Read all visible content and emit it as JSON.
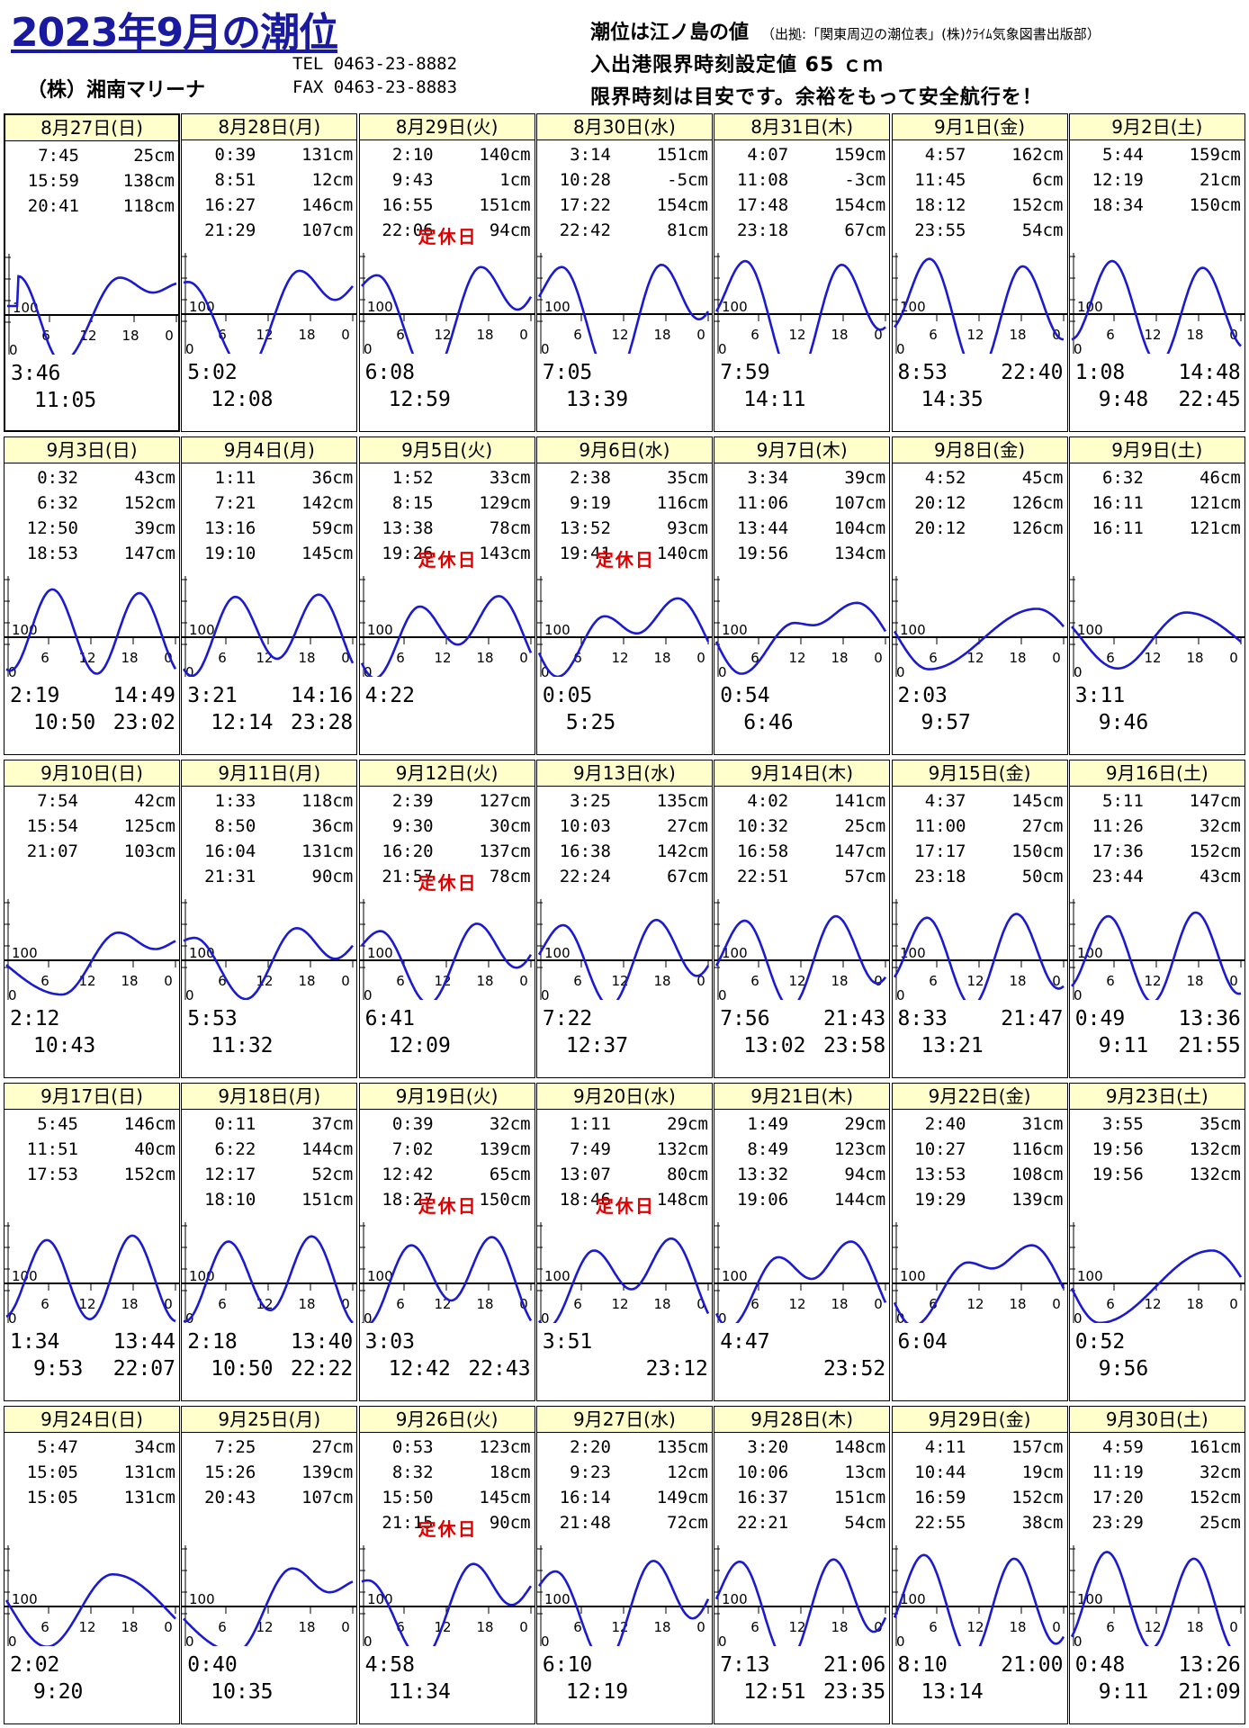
{
  "header": {
    "title": "2023年9月の潮位",
    "company": "（株）湘南マリーナ",
    "tel": "TEL 0463-23-8882",
    "fax": "FAX 0463-23-8883",
    "note1": "潮位は江ノ島の値",
    "note1_source": "（出拠:「関東周辺の潮位表」(株)ｸﾗｲﾑ気象図書出版部）",
    "note2": "入出港限界時刻設定値 65 ｃｍ",
    "note3": "限界時刻は目安です。余裕をもって安全航行を！"
  },
  "graph_labels": {
    "level_100": "100",
    "zero": "0",
    "ticks": [
      "6",
      "12",
      "18",
      "0"
    ]
  },
  "closed_label": "定休日",
  "colors": {
    "header_bg": "#ffffcc",
    "curve": "#1a1ad0",
    "closed": "#e00000",
    "title": "#1a1aa0"
  },
  "days": [
    {
      "date": "8月27日(日)",
      "tides": [
        [
          "7:45",
          "25cm"
        ],
        [
          "15:59",
          "138cm"
        ],
        [
          "20:41",
          "118cm"
        ]
      ],
      "closed": false,
      "limits": [
        "3:46",
        "11:05"
      ]
    },
    {
      "date": "8月28日(月)",
      "tides": [
        [
          "0:39",
          "131cm"
        ],
        [
          "8:51",
          "12cm"
        ],
        [
          "16:27",
          "146cm"
        ],
        [
          "21:29",
          "107cm"
        ]
      ],
      "closed": false,
      "limits": [
        "5:02",
        "12:08"
      ]
    },
    {
      "date": "8月29日(火)",
      "tides": [
        [
          "2:10",
          "140cm"
        ],
        [
          "9:43",
          "1cm"
        ],
        [
          "16:55",
          "151cm"
        ],
        [
          "22:06",
          "94cm"
        ]
      ],
      "closed": true,
      "limits": [
        "6:08",
        "12:59"
      ]
    },
    {
      "date": "8月30日(水)",
      "tides": [
        [
          "3:14",
          "151cm"
        ],
        [
          "10:28",
          "-5cm"
        ],
        [
          "17:22",
          "154cm"
        ],
        [
          "22:42",
          "81cm"
        ]
      ],
      "closed": false,
      "limits": [
        "7:05",
        "13:39"
      ]
    },
    {
      "date": "8月31日(木)",
      "tides": [
        [
          "4:07",
          "159cm"
        ],
        [
          "11:08",
          "-3cm"
        ],
        [
          "17:48",
          "154cm"
        ],
        [
          "23:18",
          "67cm"
        ]
      ],
      "closed": false,
      "limits": [
        "7:59",
        "14:11"
      ]
    },
    {
      "date": "9月1日(金)",
      "tides": [
        [
          "4:57",
          "162cm"
        ],
        [
          "11:45",
          "6cm"
        ],
        [
          "18:12",
          "152cm"
        ],
        [
          "23:55",
          "54cm"
        ]
      ],
      "closed": false,
      "limits": [
        "8:53",
        "22:40",
        "14:35"
      ]
    },
    {
      "date": "9月2日(土)",
      "tides": [
        [
          "5:44",
          "159cm"
        ],
        [
          "12:19",
          "21cm"
        ],
        [
          "18:34",
          "150cm"
        ]
      ],
      "closed": false,
      "limits": [
        "1:08",
        "14:48",
        "9:48",
        "22:45"
      ]
    },
    {
      "date": "9月3日(日)",
      "tides": [
        [
          "0:32",
          "43cm"
        ],
        [
          "6:32",
          "152cm"
        ],
        [
          "12:50",
          "39cm"
        ],
        [
          "18:53",
          "147cm"
        ]
      ],
      "closed": false,
      "limits": [
        "2:19",
        "14:49",
        "10:50",
        "23:02"
      ]
    },
    {
      "date": "9月4日(月)",
      "tides": [
        [
          "1:11",
          "36cm"
        ],
        [
          "7:21",
          "142cm"
        ],
        [
          "13:16",
          "59cm"
        ],
        [
          "19:10",
          "145cm"
        ]
      ],
      "closed": false,
      "limits": [
        "3:21",
        "14:16",
        "12:14",
        "23:28"
      ]
    },
    {
      "date": "9月5日(火)",
      "tides": [
        [
          "1:52",
          "33cm"
        ],
        [
          "8:15",
          "129cm"
        ],
        [
          "13:38",
          "78cm"
        ],
        [
          "19:26",
          "143cm"
        ]
      ],
      "closed": true,
      "limits": [
        "4:22"
      ]
    },
    {
      "date": "9月6日(水)",
      "tides": [
        [
          "2:38",
          "35cm"
        ],
        [
          "9:19",
          "116cm"
        ],
        [
          "13:52",
          "93cm"
        ],
        [
          "19:41",
          "140cm"
        ]
      ],
      "closed": true,
      "limits": [
        "0:05",
        "5:25"
      ]
    },
    {
      "date": "9月7日(木)",
      "tides": [
        [
          "3:34",
          "39cm"
        ],
        [
          "11:06",
          "107cm"
        ],
        [
          "13:44",
          "104cm"
        ],
        [
          "19:56",
          "134cm"
        ]
      ],
      "closed": false,
      "limits": [
        "0:54",
        "6:46"
      ]
    },
    {
      "date": "9月8日(金)",
      "tides": [
        [
          "4:52",
          "45cm"
        ],
        [
          "20:12",
          "126cm"
        ],
        [
          "20:12",
          "126cm"
        ]
      ],
      "closed": false,
      "limits": [
        "2:03",
        "9:57"
      ]
    },
    {
      "date": "9月9日(土)",
      "tides": [
        [
          "6:32",
          "46cm"
        ],
        [
          "16:11",
          "121cm"
        ],
        [
          "16:11",
          "121cm"
        ]
      ],
      "closed": false,
      "limits": [
        "3:11",
        "9:46"
      ]
    },
    {
      "date": "9月10日(日)",
      "tides": [
        [
          "7:54",
          "42cm"
        ],
        [
          "15:54",
          "125cm"
        ],
        [
          "21:07",
          "103cm"
        ]
      ],
      "closed": false,
      "limits": [
        "2:12",
        "10:43"
      ]
    },
    {
      "date": "9月11日(月)",
      "tides": [
        [
          "1:33",
          "118cm"
        ],
        [
          "8:50",
          "36cm"
        ],
        [
          "16:04",
          "131cm"
        ],
        [
          "21:31",
          "90cm"
        ]
      ],
      "closed": false,
      "limits": [
        "5:53",
        "11:32"
      ]
    },
    {
      "date": "9月12日(火)",
      "tides": [
        [
          "2:39",
          "127cm"
        ],
        [
          "9:30",
          "30cm"
        ],
        [
          "16:20",
          "137cm"
        ],
        [
          "21:57",
          "78cm"
        ]
      ],
      "closed": true,
      "limits": [
        "6:41",
        "12:09"
      ]
    },
    {
      "date": "9月13日(水)",
      "tides": [
        [
          "3:25",
          "135cm"
        ],
        [
          "10:03",
          "27cm"
        ],
        [
          "16:38",
          "142cm"
        ],
        [
          "22:24",
          "67cm"
        ]
      ],
      "closed": false,
      "limits": [
        "7:22",
        "12:37"
      ]
    },
    {
      "date": "9月14日(木)",
      "tides": [
        [
          "4:02",
          "141cm"
        ],
        [
          "10:32",
          "25cm"
        ],
        [
          "16:58",
          "147cm"
        ],
        [
          "22:51",
          "57cm"
        ]
      ],
      "closed": false,
      "limits": [
        "7:56",
        "21:43",
        "13:02",
        "23:58"
      ]
    },
    {
      "date": "9月15日(金)",
      "tides": [
        [
          "4:37",
          "145cm"
        ],
        [
          "11:00",
          "27cm"
        ],
        [
          "17:17",
          "150cm"
        ],
        [
          "23:18",
          "50cm"
        ]
      ],
      "closed": false,
      "limits": [
        "8:33",
        "21:47",
        "13:21"
      ]
    },
    {
      "date": "9月16日(土)",
      "tides": [
        [
          "5:11",
          "147cm"
        ],
        [
          "11:26",
          "32cm"
        ],
        [
          "17:36",
          "152cm"
        ],
        [
          "23:44",
          "43cm"
        ]
      ],
      "closed": false,
      "limits": [
        "0:49",
        "13:36",
        "9:11",
        "21:55"
      ]
    },
    {
      "date": "9月17日(日)",
      "tides": [
        [
          "5:45",
          "146cm"
        ],
        [
          "11:51",
          "40cm"
        ],
        [
          "17:53",
          "152cm"
        ]
      ],
      "closed": false,
      "limits": [
        "1:34",
        "13:44",
        "9:53",
        "22:07"
      ]
    },
    {
      "date": "9月18日(月)",
      "tides": [
        [
          "0:11",
          "37cm"
        ],
        [
          "6:22",
          "144cm"
        ],
        [
          "12:17",
          "52cm"
        ],
        [
          "18:10",
          "151cm"
        ]
      ],
      "closed": false,
      "limits": [
        "2:18",
        "13:40",
        "10:50",
        "22:22"
      ]
    },
    {
      "date": "9月19日(火)",
      "tides": [
        [
          "0:39",
          "32cm"
        ],
        [
          "7:02",
          "139cm"
        ],
        [
          "12:42",
          "65cm"
        ],
        [
          "18:27",
          "150cm"
        ]
      ],
      "closed": true,
      "limits": [
        "3:03",
        "",
        "12:42",
        "22:43"
      ]
    },
    {
      "date": "9月20日(水)",
      "tides": [
        [
          "1:11",
          "29cm"
        ],
        [
          "7:49",
          "132cm"
        ],
        [
          "13:07",
          "80cm"
        ],
        [
          "18:46",
          "148cm"
        ]
      ],
      "closed": true,
      "limits": [
        "3:51",
        "",
        "",
        "23:12"
      ]
    },
    {
      "date": "9月21日(木)",
      "tides": [
        [
          "1:49",
          "29cm"
        ],
        [
          "8:49",
          "123cm"
        ],
        [
          "13:32",
          "94cm"
        ],
        [
          "19:06",
          "144cm"
        ]
      ],
      "closed": false,
      "limits": [
        "4:47",
        "",
        "",
        "23:52"
      ]
    },
    {
      "date": "9月22日(金)",
      "tides": [
        [
          "2:40",
          "31cm"
        ],
        [
          "10:27",
          "116cm"
        ],
        [
          "13:53",
          "108cm"
        ],
        [
          "19:29",
          "139cm"
        ]
      ],
      "closed": false,
      "limits": [
        "6:04"
      ]
    },
    {
      "date": "9月23日(土)",
      "tides": [
        [
          "3:55",
          "35cm"
        ],
        [
          "19:56",
          "132cm"
        ],
        [
          "19:56",
          "132cm"
        ]
      ],
      "closed": false,
      "limits": [
        "0:52",
        "9:56"
      ]
    },
    {
      "date": "9月24日(日)",
      "tides": [
        [
          "5:47",
          "34cm"
        ],
        [
          "15:05",
          "131cm"
        ],
        [
          "15:05",
          "131cm"
        ]
      ],
      "closed": false,
      "limits": [
        "2:02",
        "9:20"
      ]
    },
    {
      "date": "9月25日(月)",
      "tides": [
        [
          "7:25",
          "27cm"
        ],
        [
          "15:26",
          "139cm"
        ],
        [
          "20:43",
          "107cm"
        ]
      ],
      "closed": false,
      "limits": [
        "0:40",
        "10:35"
      ]
    },
    {
      "date": "9月26日(火)",
      "tides": [
        [
          "0:53",
          "123cm"
        ],
        [
          "8:32",
          "18cm"
        ],
        [
          "15:50",
          "145cm"
        ],
        [
          "21:15",
          "90cm"
        ]
      ],
      "closed": true,
      "limits": [
        "4:58",
        "11:34"
      ]
    },
    {
      "date": "9月27日(水)",
      "tides": [
        [
          "2:20",
          "135cm"
        ],
        [
          "9:23",
          "12cm"
        ],
        [
          "16:14",
          "149cm"
        ],
        [
          "21:48",
          "72cm"
        ]
      ],
      "closed": false,
      "limits": [
        "6:10",
        "12:19"
      ]
    },
    {
      "date": "9月28日(木)",
      "tides": [
        [
          "3:20",
          "148cm"
        ],
        [
          "10:06",
          "13cm"
        ],
        [
          "16:37",
          "151cm"
        ],
        [
          "22:21",
          "54cm"
        ]
      ],
      "closed": false,
      "limits": [
        "7:13",
        "21:06",
        "12:51",
        "23:35"
      ]
    },
    {
      "date": "9月29日(金)",
      "tides": [
        [
          "4:11",
          "157cm"
        ],
        [
          "10:44",
          "19cm"
        ],
        [
          "16:59",
          "152cm"
        ],
        [
          "22:55",
          "38cm"
        ]
      ],
      "closed": false,
      "limits": [
        "8:10",
        "21:00",
        "13:14"
      ]
    },
    {
      "date": "9月30日(土)",
      "tides": [
        [
          "4:59",
          "161cm"
        ],
        [
          "11:19",
          "32cm"
        ],
        [
          "17:20",
          "152cm"
        ],
        [
          "23:29",
          "25cm"
        ]
      ],
      "closed": false,
      "limits": [
        "0:48",
        "13:26",
        "9:11",
        "21:09"
      ]
    }
  ]
}
